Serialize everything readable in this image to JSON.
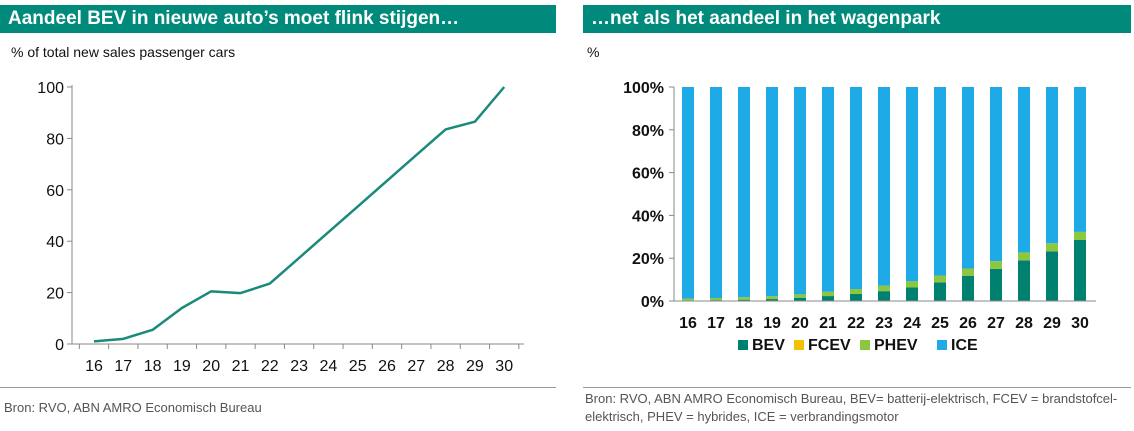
{
  "left": {
    "header": "Aandeel BEV in nieuwe auto’s moet flink stijgen…",
    "axis_unit": "% of total new sales passenger cars",
    "source": "Bron: RVO, ABN AMRO Economisch Bureau"
  },
  "right": {
    "header": "…net als het aandeel in het wagenpark",
    "axis_unit": "%",
    "source": "Bron: RVO, ABN AMRO Economisch Bureau, BEV= batterij-elektrisch, FCEV = brandstofcel-elektrisch, PHEV = hybrides, ICE = verbrandingsmotor"
  },
  "colors": {
    "header_bg": "#008A7B",
    "line": "#1A8A7A",
    "BEV": "#00806F",
    "FCEV": "#F2C200",
    "PHEV": "#8DC63F",
    "ICE": "#1EAAE7"
  },
  "chart_data": [
    {
      "type": "line",
      "title": "Aandeel BEV in nieuwe auto’s moet flink stijgen…",
      "ylabel": "% of total new sales passenger cars",
      "xlabel": "",
      "x": [
        "16",
        "17",
        "18",
        "19",
        "20",
        "21",
        "22",
        "23",
        "24",
        "25",
        "26",
        "27",
        "28",
        "29",
        "30"
      ],
      "values": [
        1,
        2,
        5.5,
        14,
        20.5,
        19.8,
        23.5,
        33.5,
        43.5,
        53.5,
        63.5,
        73.5,
        83.5,
        86.5,
        100
      ],
      "ylim": [
        0,
        100
      ],
      "yticks": [
        "0",
        "20",
        "40",
        "60",
        "80",
        "100"
      ],
      "grid": false
    },
    {
      "type": "bar",
      "stacked": true,
      "title": "…net als het aandeel in het wagenpark",
      "ylabel": "%",
      "categories": [
        "16",
        "17",
        "18",
        "19",
        "20",
        "21",
        "22",
        "23",
        "24",
        "25",
        "26",
        "27",
        "28",
        "29",
        "30"
      ],
      "ylim": [
        0,
        100
      ],
      "yticks": [
        "0%",
        "20%",
        "40%",
        "60%",
        "80%",
        "100%"
      ],
      "legend_position": "bottom",
      "series": [
        {
          "name": "BEV",
          "values": [
            0.3,
            0.4,
            0.6,
            0.9,
            1.4,
            2.3,
            3.3,
            4.6,
            6.3,
            8.7,
            11.8,
            15.0,
            19.0,
            23.2,
            28.5
          ]
        },
        {
          "name": "FCEV",
          "values": [
            0,
            0,
            0,
            0,
            0,
            0,
            0,
            0,
            0,
            0,
            0,
            0,
            0,
            0,
            0
          ]
        },
        {
          "name": "PHEV",
          "values": [
            0.8,
            1.0,
            1.2,
            1.4,
            1.7,
            2.0,
            2.3,
            2.6,
            2.9,
            3.2,
            3.4,
            3.6,
            3.7,
            3.8,
            3.8
          ]
        },
        {
          "name": "ICE",
          "values": [
            98.9,
            98.6,
            98.2,
            97.7,
            96.9,
            95.7,
            94.4,
            92.8,
            90.8,
            88.1,
            84.8,
            81.4,
            77.3,
            73.0,
            67.7
          ]
        }
      ]
    }
  ]
}
